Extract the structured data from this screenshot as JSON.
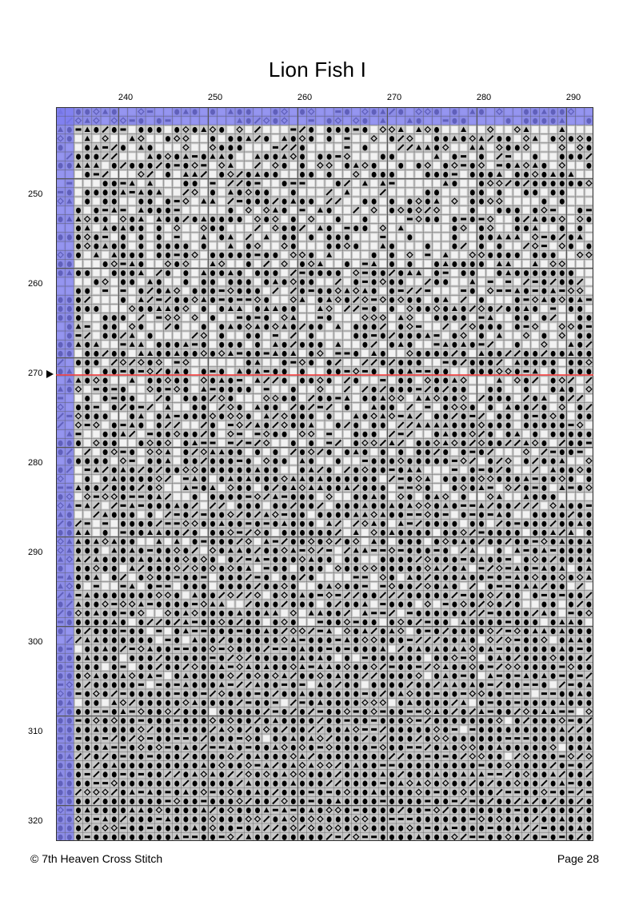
{
  "page": {
    "title": "Lion Fish I",
    "copyright": "© 7th Heaven Cross Stitch",
    "page_number": "Page 28"
  },
  "grid": {
    "column_labels": [
      "240",
      "250",
      "260",
      "270",
      "280",
      "290"
    ],
    "row_labels": [
      "250",
      "260",
      "270",
      "280",
      "290",
      "300",
      "310",
      "320"
    ],
    "current_row": "270",
    "overlap_color": "#7b7bf0",
    "marker_line_color": "#ff3b3b",
    "symbol_color": "#000000",
    "cell_background": "#c8c8c8"
  }
}
